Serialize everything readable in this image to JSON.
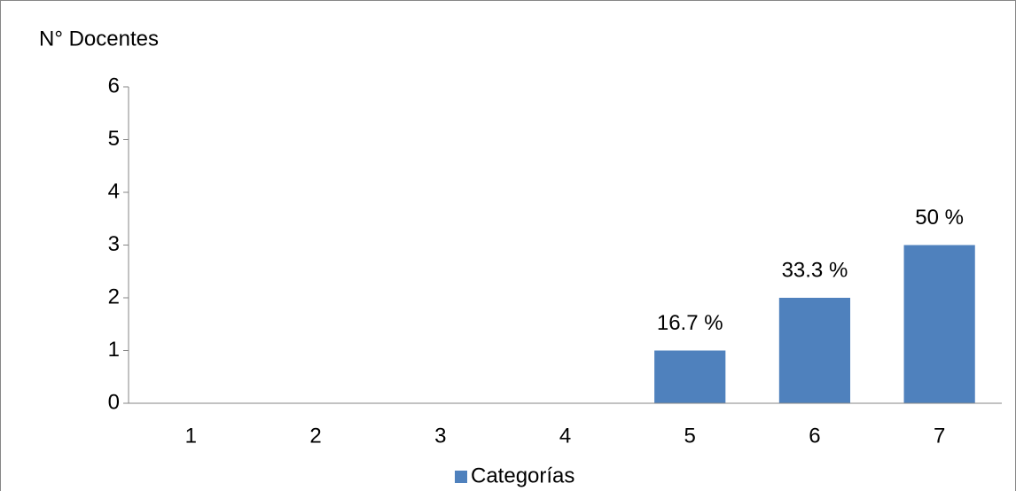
{
  "chart_data": {
    "type": "bar",
    "y_label": "N° Docentes",
    "categories": [
      "1",
      "2",
      "3",
      "4",
      "5",
      "6",
      "7"
    ],
    "values": [
      0,
      0,
      0,
      0,
      1,
      2,
      3
    ],
    "value_labels": [
      null,
      null,
      null,
      null,
      "16.7 %",
      "33.3 %",
      "50 %"
    ],
    "color": "#4f81bd",
    "series_name": "Categorías",
    "legend": "bottom",
    "ylim": [
      0,
      6
    ],
    "yticks": [
      0,
      1,
      2,
      3,
      4,
      5,
      6
    ],
    "grid": false
  }
}
